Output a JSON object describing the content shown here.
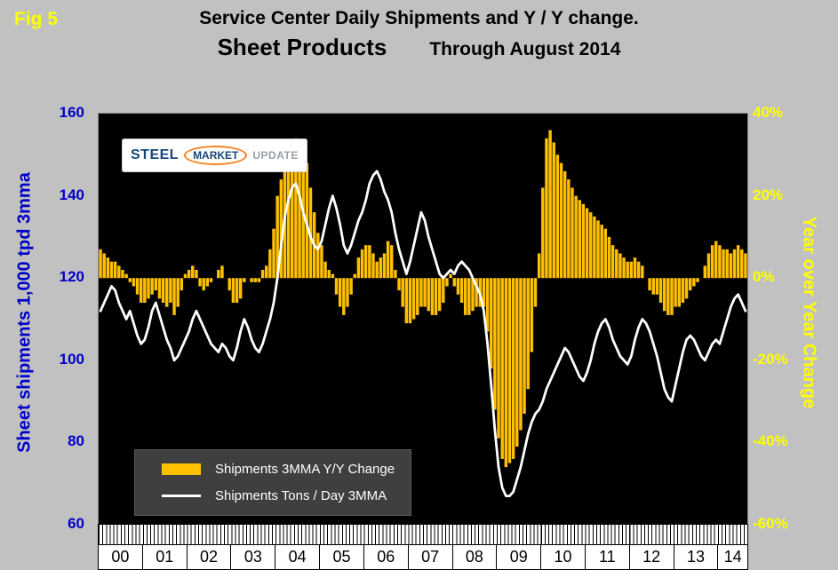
{
  "header": {
    "fig_label": "Fig 5",
    "title": "Service Center Daily Shipments and Y / Y change.",
    "subtitle": "Sheet Products",
    "period": "Through August 2014"
  },
  "logo": {
    "steel": "STEEL",
    "market": "MARKET",
    "update": "UPDATE"
  },
  "legend": {
    "bar_label": "Shipments 3MMA Y/Y Change",
    "line_label": "Shipments Tons / Day 3MMA"
  },
  "colors": {
    "background": "#C1C1C1",
    "plot_background": "#000000",
    "bar": "#FFC000",
    "line": "#FFFFFF",
    "left_axis": "#0000C8",
    "right_axis": "#FFFF00",
    "fig_label": "#FFFF00",
    "legend_background": "#3F3F3F"
  },
  "chart_data": {
    "type": "bar+line",
    "title": "Service Center Daily Shipments and Y / Y change.",
    "subtitle": "Sheet Products",
    "period": "Through August 2014",
    "x_unit": "month",
    "x_start": "2000-01",
    "x_end": "2014-08",
    "grid": "off",
    "legend_position": "inside-lower-left",
    "year_labels": [
      "00",
      "01",
      "02",
      "03",
      "04",
      "05",
      "06",
      "07",
      "08",
      "09",
      "10",
      "11",
      "12",
      "13",
      "14"
    ],
    "year_month_counts": [
      12,
      12,
      12,
      12,
      12,
      12,
      12,
      12,
      12,
      12,
      12,
      12,
      12,
      12,
      8
    ],
    "left_axis": {
      "title": "Sheet shipments 1,000 tpd 3mma",
      "ticks": [
        160,
        140,
        120,
        100,
        80,
        60
      ],
      "range": [
        60,
        160
      ]
    },
    "right_axis": {
      "title": "Year over Year Change",
      "ticks": [
        "40%",
        "20%",
        "0%",
        "-20%",
        "-40%",
        "-60%"
      ],
      "range": [
        -60,
        40
      ]
    },
    "series": [
      {
        "name": "Shipments 3MMA Y/Y Change",
        "type": "bar",
        "axis": "right",
        "unit": "%",
        "values": [
          7,
          6,
          5,
          4,
          4,
          3,
          2,
          1,
          -1,
          -2,
          -4,
          -6,
          -6,
          -5,
          -4,
          -3,
          -5,
          -6,
          -7,
          -6,
          -9,
          -7,
          -3,
          1,
          2,
          3,
          2,
          -2,
          -3,
          -2,
          -1,
          0,
          2,
          3,
          0,
          -3,
          -6,
          -6,
          -5,
          -1,
          0,
          -1,
          -1,
          -1,
          2,
          3,
          7,
          12,
          20,
          24,
          26,
          27,
          31,
          34,
          33,
          31,
          28,
          22,
          16,
          11,
          8,
          4,
          2,
          1,
          -4,
          -7,
          -9,
          -7,
          -4,
          1,
          5,
          7,
          8,
          8,
          6,
          4,
          5,
          6,
          9,
          8,
          2,
          -3,
          -7,
          -11,
          -11,
          -10,
          -9,
          -7,
          -7,
          -8,
          -9,
          -9,
          -8,
          -6,
          -2,
          1,
          -2,
          -4,
          -6,
          -9,
          -9,
          -8,
          -7,
          -7,
          -7,
          -13,
          -22,
          -32,
          -39,
          -44,
          -46,
          -45,
          -44,
          -41,
          -37,
          -33,
          -27,
          -18,
          -7,
          6,
          22,
          34,
          36,
          33,
          30,
          28,
          26,
          24,
          22,
          20,
          19,
          18,
          17,
          16,
          15,
          14,
          13,
          12,
          10,
          8,
          7,
          6,
          5,
          4,
          4,
          5,
          4,
          3,
          0,
          -3,
          -4,
          -4,
          -6,
          -8,
          -9,
          -9,
          -7,
          -7,
          -6,
          -5,
          -3,
          -2,
          -1,
          0,
          3,
          6,
          8,
          9,
          8,
          7,
          7,
          6,
          7,
          8,
          7,
          6
        ]
      },
      {
        "name": "Shipments Tons / Day 3MMA",
        "type": "line",
        "axis": "left",
        "unit": "1,000 tpd",
        "values": [
          112,
          114,
          116,
          118,
          117,
          114,
          112,
          110,
          112,
          109,
          106,
          104,
          105,
          108,
          112,
          114,
          111,
          108,
          105,
          103,
          100,
          101,
          103,
          105,
          107,
          110,
          112,
          110,
          108,
          106,
          104,
          103,
          102,
          104,
          103,
          101,
          100,
          103,
          107,
          110,
          108,
          105,
          103,
          102,
          104,
          107,
          110,
          114,
          120,
          128,
          135,
          139,
          142,
          143,
          140,
          136,
          133,
          130,
          128,
          127,
          129,
          133,
          137,
          140,
          137,
          133,
          128,
          126,
          128,
          131,
          134,
          136,
          139,
          143,
          145,
          146,
          144,
          141,
          139,
          136,
          131,
          127,
          124,
          121,
          124,
          128,
          132,
          136,
          134,
          130,
          127,
          124,
          121,
          120,
          121,
          122,
          121,
          123,
          124,
          123,
          122,
          120,
          118,
          116,
          112,
          104,
          94,
          83,
          74,
          69,
          67,
          67,
          68,
          71,
          74,
          78,
          82,
          85,
          87,
          88,
          90,
          93,
          95,
          97,
          99,
          101,
          103,
          102,
          100,
          98,
          96,
          95,
          97,
          100,
          104,
          107,
          109,
          110,
          108,
          105,
          103,
          101,
          100,
          99,
          101,
          105,
          108,
          110,
          109,
          107,
          104,
          101,
          97,
          93,
          91,
          90,
          94,
          98,
          102,
          105,
          106,
          105,
          103,
          101,
          100,
          102,
          104,
          105,
          104,
          107,
          110,
          113,
          115,
          116,
          114,
          112
        ]
      }
    ]
  }
}
